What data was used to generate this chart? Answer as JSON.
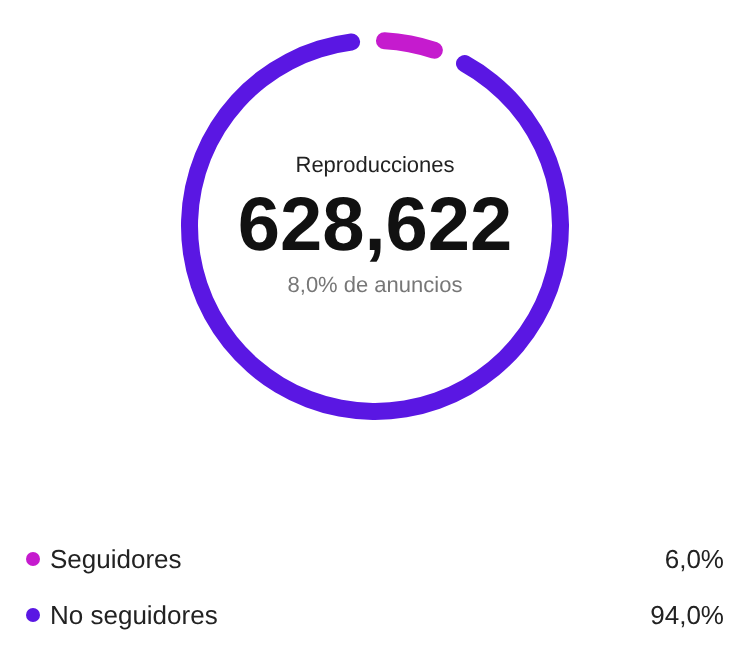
{
  "chart_data": {
    "type": "donut",
    "title": "Reproducciones",
    "categories": [
      "Seguidores",
      "No seguidores"
    ],
    "values": [
      6,
      94
    ],
    "value_labels": [
      "6,0%",
      "94,0%"
    ],
    "colors": [
      "#c51bce",
      "#5a17e3"
    ],
    "annotations": [
      "628,622",
      "8,0% de anuncios"
    ],
    "legend": "bottom"
  }
}
